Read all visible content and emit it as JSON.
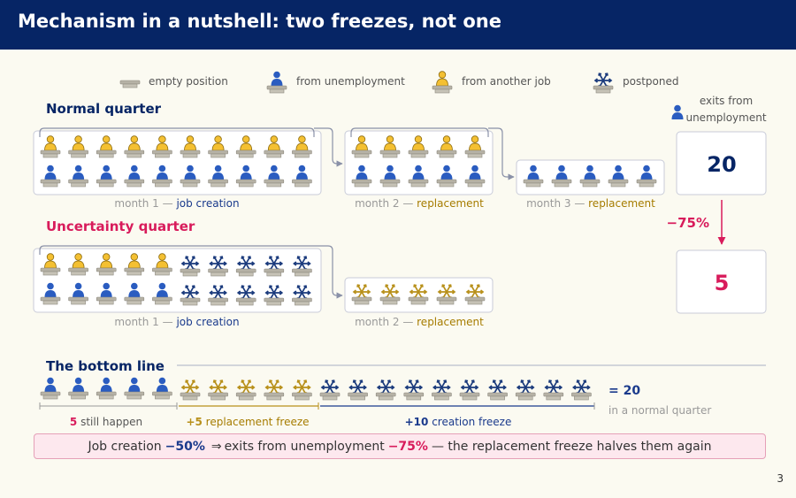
{
  "title": "Mechanism in a nutshell: two freezes, not one",
  "legend": {
    "empty": "empty position",
    "unemp": "from unemployment",
    "job": "from another job",
    "postponed": "postponed"
  },
  "exits_label": [
    "exits from",
    "unemployment"
  ],
  "normal": {
    "heading": "Normal quarter",
    "m1_label": "month 1 — ",
    "m1_type": "job creation",
    "m2_label": "month 2 — ",
    "m2_type": "replacement",
    "m3_label": "month 3 — ",
    "m3_type": "replacement",
    "exits": "20"
  },
  "uncertainty": {
    "heading": "Uncertainty quarter",
    "m1_label": "month 1 — ",
    "m1_type": "job creation",
    "m2_label": "month 2 — ",
    "m2_type": "replacement",
    "exits": "5"
  },
  "change": "−75%",
  "bottom": {
    "heading": "The bottom line",
    "equals": "= 20",
    "equals_sub": "in a normal quarter",
    "still_num": "5",
    "still_text": " still happen",
    "rep_num": "+5",
    "rep_text": " replacement freeze",
    "cre_num": "+10",
    "cre_text": " creation freeze"
  },
  "note": {
    "part1": "Job creation",
    "val1": "−50%",
    "arrow": "⇒",
    "part2": "exits from unemployment",
    "val2": "−75%",
    "part3": "— the replacement freeze halves them again"
  },
  "page_number": "3",
  "colors": {
    "navy": "#062565",
    "blue": "#2a5cc0",
    "gold": "#f4c032",
    "snow_navy": "#1a3a7c",
    "snow_gold": "#b8901a",
    "red": "#d81b5b",
    "desk": "#b6b2a6"
  }
}
